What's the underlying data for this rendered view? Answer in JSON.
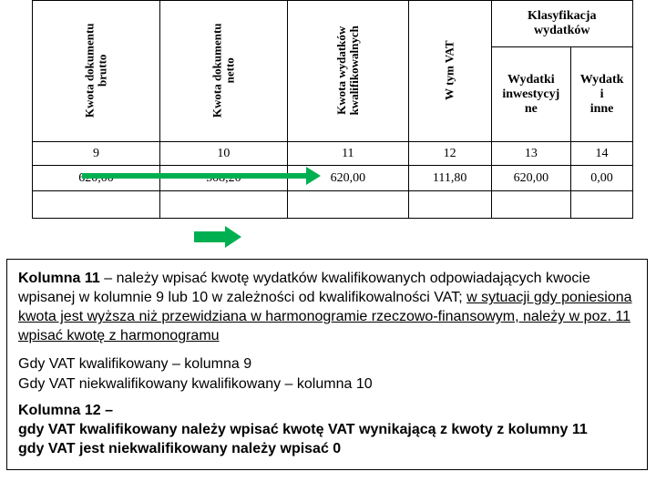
{
  "table": {
    "headers": {
      "brutto": "Kwota dokumentu\nbrutto",
      "netto": "Kwota dokumentu\nnetto",
      "kwalif": "Kwota wydatków\nkwalifikowalnych",
      "vat": "W tym VAT",
      "klas": "Klasyfikacja\nwydatków",
      "inwest": "Wydatki\ninwestycyj\nne",
      "inne": "Wydatk\ni\ninne"
    },
    "col_numbers": [
      "9",
      "10",
      "11",
      "12",
      "13",
      "14"
    ],
    "values": [
      "620,00",
      "508,20",
      "620,00",
      "111,80",
      "620,00",
      "0,00"
    ]
  },
  "text": {
    "k11_label": "Kolumna 11",
    "k11_dash": " – ",
    "k11_body1": "należy wpisać kwotę wydatków kwalifikowanych odpowiadających kwocie wpisanej w kolumnie 9 lub 10 w zależności od kwalifikowalności VAT; ",
    "k11_under": "w sytuacji gdy poniesiona kwota jest wyższa niż przewidziana w harmonogramie rzeczowo-finansowym, należy w poz. 11 wpisać kwotę z harmonogramu",
    "p2a": "Gdy VAT kwalifikowany – kolumna 9",
    "p2b": "Gdy VAT niekwalifikowany kwalifikowany – kolumna 10",
    "k12_label": "Kolumna 12 –",
    "k12_line1": "gdy VAT kwalifikowany należy wpisać kwotę VAT wynikającą z kwoty z kolumny 11",
    "k12_line2": "gdy VAT jest niekwalifikowany należy wpisać 0"
  },
  "colors": {
    "arrow": "#00b050"
  }
}
